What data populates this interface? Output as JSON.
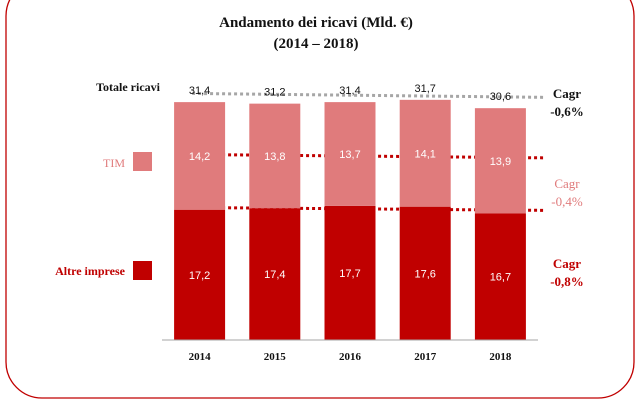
{
  "chart_data": {
    "type": "bar",
    "stacked": true,
    "title": "Andamento dei ricavi (Mld. €)",
    "subtitle": "(2014 – 2018)",
    "categories": [
      "2014",
      "2015",
      "2016",
      "2017",
      "2018"
    ],
    "series": [
      {
        "name": "Altre imprese",
        "values": [
          17.2,
          17.4,
          17.7,
          17.6,
          16.7
        ],
        "labels": [
          "17,2",
          "17,4",
          "17,7",
          "17,6",
          "16,7"
        ],
        "color": "#c00000",
        "label_color": "#ffffff"
      },
      {
        "name": "TIM",
        "values": [
          14.2,
          13.8,
          13.7,
          14.1,
          13.9
        ],
        "labels": [
          "14,2",
          "13,8",
          "13,7",
          "14,1",
          "13,9"
        ],
        "color": "#e07b7c",
        "label_color": "#ffffff"
      }
    ],
    "totals": {
      "name": "Totale ricavi",
      "values": [
        31.4,
        31.2,
        31.4,
        31.7,
        30.6
      ],
      "labels": [
        "31,4",
        "31,2",
        "31,4",
        "31,7",
        "30,6"
      ]
    },
    "trendlines": [
      {
        "applies_to": "Totale ricavi",
        "label": "Cagr",
        "value": "-0,6%",
        "color": "#a6a6a6",
        "text_color": "#111111"
      },
      {
        "applies_to": "TIM",
        "label": "Cagr",
        "value": "-0,4%",
        "color": "#c00000",
        "text_color": "#e07b7c"
      },
      {
        "applies_to": "Altre imprese",
        "label": "Cagr",
        "value": "-0,8%",
        "color": "#c00000",
        "text_color": "#c00000"
      }
    ],
    "ylim": [
      0,
      33
    ],
    "grid": false,
    "legend": "left",
    "frame_color": "#c00000"
  }
}
